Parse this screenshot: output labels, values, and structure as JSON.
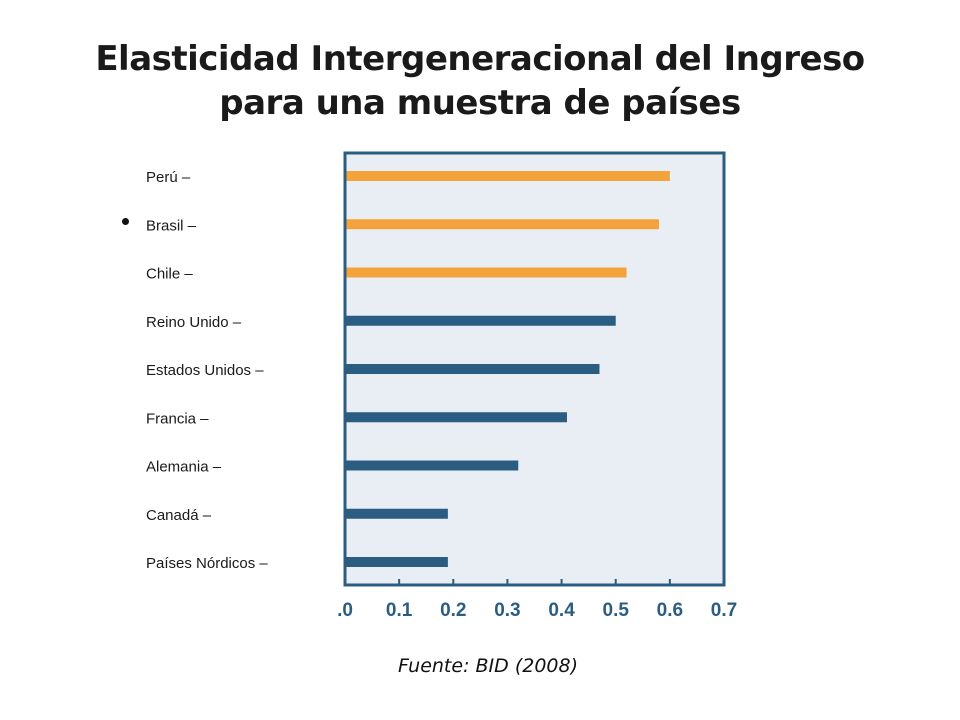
{
  "title": {
    "line1": "Elasticidad Intergeneracional del Ingreso",
    "line2": "para una muestra de países"
  },
  "source": "Fuente: BID (2008)",
  "chart_data": {
    "type": "bar",
    "orientation": "horizontal",
    "categories": [
      "Perú",
      "Brasil",
      "Chile",
      "Reino Unido",
      "Estados Unidos",
      "Francia",
      "Alemania",
      "Canadá",
      "Países Nórdicos"
    ],
    "category_tick_suffix": " –",
    "values": [
      0.6,
      0.58,
      0.52,
      0.5,
      0.47,
      0.41,
      0.32,
      0.19,
      0.19
    ],
    "bar_colors": [
      "#f3a33b",
      "#f3a33b",
      "#f3a33b",
      "#2b5c82",
      "#2b5c82",
      "#2b5c82",
      "#2b5c82",
      "#2b5c82",
      "#2b5c82"
    ],
    "x_ticks": [
      ".0",
      "0.1",
      "0.2",
      "0.3",
      "0.4",
      "0.5",
      "0.6",
      "0.7"
    ],
    "xlim": [
      0,
      0.7
    ],
    "plot_background": "#e8eef4",
    "axis_color": "#2b5c82",
    "grid": false,
    "title": "Elasticidad Intergeneracional del Ingreso para una muestra de países"
  }
}
